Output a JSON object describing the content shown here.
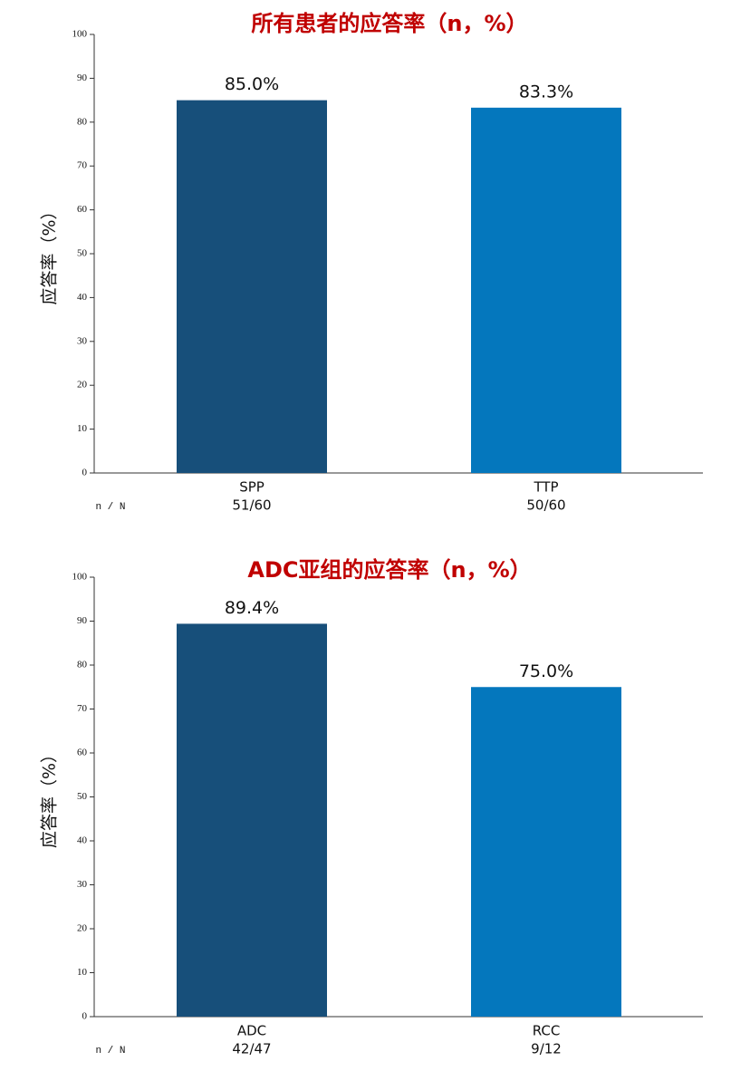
{
  "chart_data": [
    {
      "type": "bar",
      "title": "所有患者的应答率（n，%）",
      "y_label": "应答率（%）",
      "categories": [
        "SPP",
        "TTP"
      ],
      "count_label": "n / N",
      "counts": [
        "51/60",
        "50/60"
      ],
      "values": [
        85.0,
        83.3
      ],
      "value_labels": [
        "85.0%",
        "83.3%"
      ],
      "colors": [
        "#174f7a",
        "#0477bd"
      ],
      "ylim": [
        0,
        100
      ],
      "yticks": [
        0,
        10,
        20,
        30,
        40,
        50,
        60,
        70,
        80,
        90,
        100
      ]
    },
    {
      "type": "bar",
      "title": "ADC亚组的应答率（n，%）",
      "y_label": "应答率（%）",
      "categories": [
        "ADC",
        "RCC"
      ],
      "count_label": "n / N",
      "counts": [
        "42/47",
        "9/12"
      ],
      "values": [
        89.4,
        75.0
      ],
      "value_labels": [
        "89.4%",
        "75.0%"
      ],
      "colors": [
        "#174f7a",
        "#0477bd"
      ],
      "ylim": [
        0,
        100
      ],
      "yticks": [
        0,
        10,
        20,
        30,
        40,
        50,
        60,
        70,
        80,
        90,
        100
      ]
    }
  ]
}
